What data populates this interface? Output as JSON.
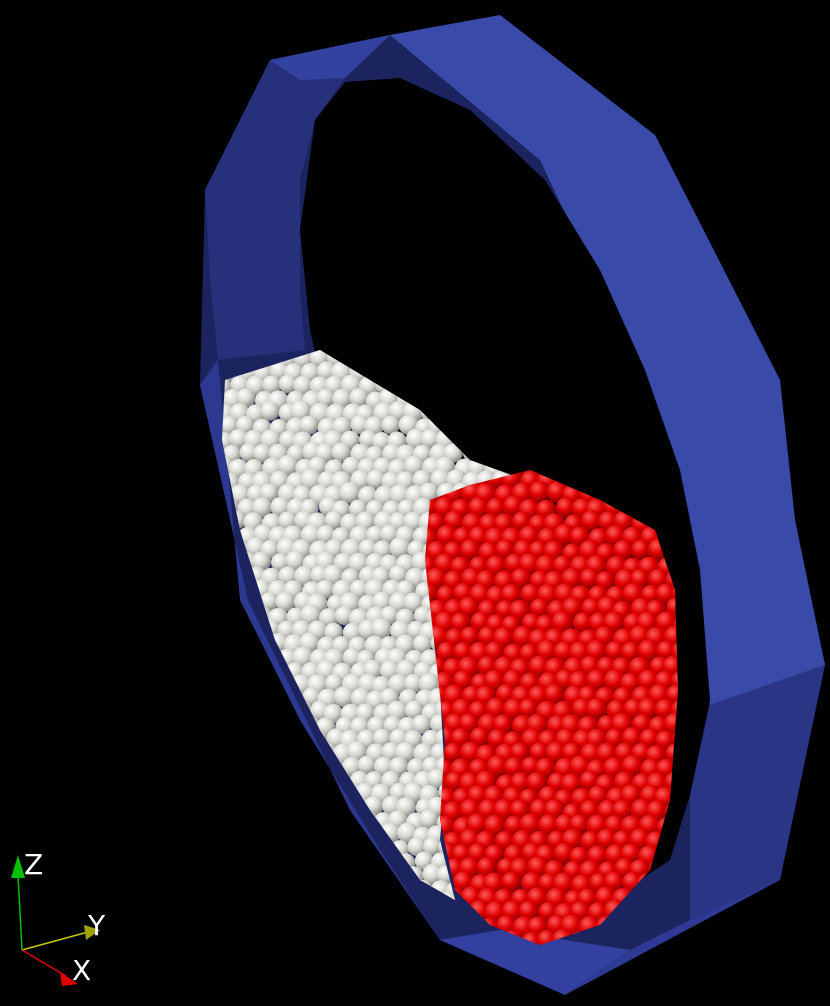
{
  "scene": {
    "background_color": "#000000",
    "drum": {
      "color_front": "#3a4aa8",
      "color_side": "#26307a",
      "color_inner": "#1c2460"
    },
    "particles": {
      "white_color": "#d9d9d4",
      "red_color": "#e00000"
    }
  },
  "orientation_axes": {
    "z": {
      "label": "Z",
      "color": "#00c000"
    },
    "y": {
      "label": "Y",
      "color": "#c8c800"
    },
    "x": {
      "label": "X",
      "color": "#e00000"
    }
  }
}
